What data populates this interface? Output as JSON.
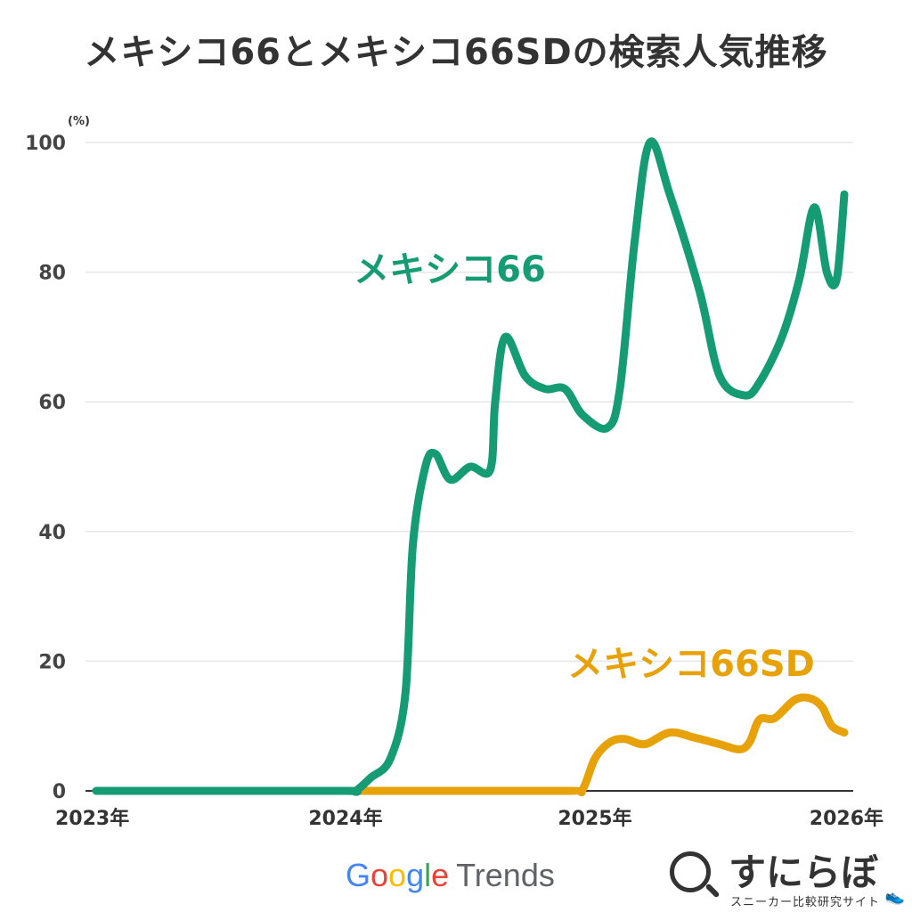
{
  "title": "メキシコ66とメキシコ66SDの検索人気推移",
  "chart_data": {
    "type": "line",
    "title": "メキシコ66とメキシコ66SDの検索人気推移",
    "ylabel": "(%)",
    "xlabel": "",
    "ylim": [
      0,
      100
    ],
    "xlim": [
      2023,
      2026
    ],
    "yticks": [
      "0",
      "20",
      "40",
      "60",
      "80",
      "100"
    ],
    "xticks": [
      {
        "value": 2023,
        "label": "2023年"
      },
      {
        "value": 2024,
        "label": "2024年"
      },
      {
        "value": 2025,
        "label": "2025年"
      },
      {
        "value": 2026,
        "label": "2026年"
      }
    ],
    "grid": true,
    "legend": "inline",
    "series": [
      {
        "name": "メキシコ66",
        "color": "#159c74",
        "points": [
          [
            2023.0,
            0
          ],
          [
            2023.5,
            0
          ],
          [
            2024.0,
            0
          ],
          [
            2024.04,
            0
          ],
          [
            2024.1,
            2
          ],
          [
            2024.18,
            5
          ],
          [
            2024.24,
            15
          ],
          [
            2024.27,
            38
          ],
          [
            2024.32,
            50
          ],
          [
            2024.36,
            52
          ],
          [
            2024.42,
            48
          ],
          [
            2024.5,
            50
          ],
          [
            2024.58,
            49.5
          ],
          [
            2024.6,
            60
          ],
          [
            2024.64,
            70
          ],
          [
            2024.72,
            64
          ],
          [
            2024.8,
            62
          ],
          [
            2024.88,
            62
          ],
          [
            2024.95,
            58
          ],
          [
            2025.05,
            56
          ],
          [
            2025.1,
            62
          ],
          [
            2025.16,
            85
          ],
          [
            2025.22,
            100
          ],
          [
            2025.3,
            92
          ],
          [
            2025.42,
            77
          ],
          [
            2025.5,
            64
          ],
          [
            2025.6,
            61
          ],
          [
            2025.66,
            63
          ],
          [
            2025.75,
            70
          ],
          [
            2025.82,
            79
          ],
          [
            2025.88,
            90
          ],
          [
            2025.93,
            80
          ],
          [
            2025.97,
            79
          ],
          [
            2026.0,
            92
          ]
        ]
      },
      {
        "name": "メキシコ66SD",
        "color": "#e7a20a",
        "points": [
          [
            2023.0,
            0
          ],
          [
            2023.5,
            0
          ],
          [
            2024.0,
            0
          ],
          [
            2024.5,
            0
          ],
          [
            2024.9,
            0
          ],
          [
            2024.95,
            0.2
          ],
          [
            2025.0,
            5
          ],
          [
            2025.06,
            7.5
          ],
          [
            2025.12,
            8
          ],
          [
            2025.2,
            7.2
          ],
          [
            2025.3,
            9
          ],
          [
            2025.4,
            8.2
          ],
          [
            2025.5,
            7.2
          ],
          [
            2025.58,
            6.4
          ],
          [
            2025.62,
            7.5
          ],
          [
            2025.66,
            11
          ],
          [
            2025.72,
            11.2
          ],
          [
            2025.8,
            14
          ],
          [
            2025.86,
            14.3
          ],
          [
            2025.91,
            13
          ],
          [
            2025.95,
            10
          ],
          [
            2026.0,
            9
          ]
        ]
      }
    ],
    "annotations": [
      {
        "text": "メキシコ66",
        "series": 0
      },
      {
        "text": "メキシコ66SD",
        "series": 1
      }
    ]
  },
  "source": {
    "google_letters": [
      "G",
      "o",
      "o",
      "g",
      "l",
      "e"
    ],
    "trends": "Trends"
  },
  "brand": {
    "name": "すにらぼ",
    "tagline": "スニーカー比較研究サイト"
  }
}
